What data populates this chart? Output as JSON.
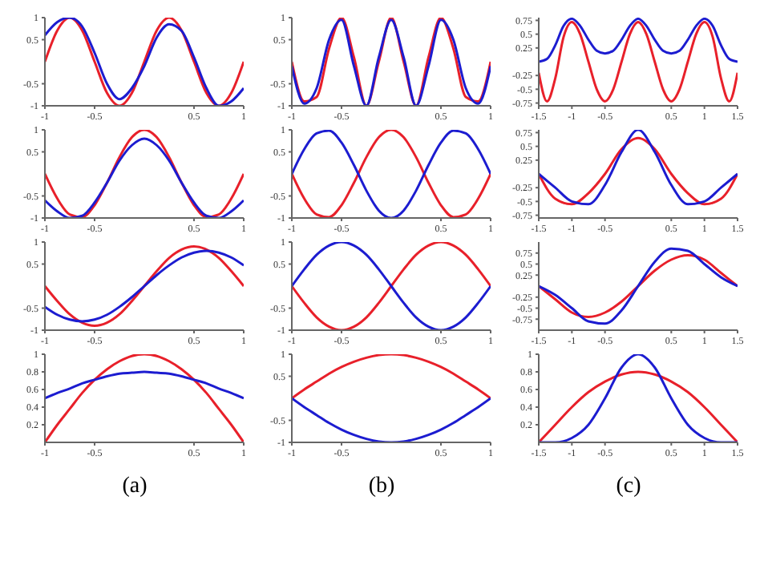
{
  "chart_data": [
    {
      "type": "line",
      "x": [
        -1,
        -0.875,
        -0.75,
        -0.625,
        -0.5,
        -0.375,
        -0.25,
        -0.125,
        0,
        0.125,
        0.25,
        0.375,
        0.5,
        0.625,
        0.75,
        0.875,
        1
      ],
      "xlim": [
        -1,
        1
      ],
      "xticks": [
        -1,
        -0.5,
        0.5,
        1
      ],
      "ylim": [
        -1,
        1
      ],
      "yticks": [
        -1,
        -0.5,
        0.5,
        1
      ],
      "series": [
        {
          "color": "#e8202a",
          "values": [
            0,
            0.71,
            1,
            0.71,
            0,
            -0.71,
            -1,
            -0.71,
            0,
            0.71,
            1,
            0.71,
            0,
            -0.71,
            -1,
            -0.71,
            0
          ]
        },
        {
          "color": "#1c1cd0",
          "values": [
            0.6,
            0.9,
            1,
            0.8,
            0.2,
            -0.5,
            -0.85,
            -0.6,
            -0.1,
            0.55,
            0.85,
            0.7,
            0.1,
            -0.6,
            -1,
            -0.9,
            -0.6
          ]
        }
      ]
    },
    {
      "type": "line",
      "x": [
        -1,
        -0.875,
        -0.75,
        -0.625,
        -0.5,
        -0.375,
        -0.25,
        -0.125,
        0,
        0.125,
        0.25,
        0.375,
        0.5,
        0.625,
        0.75,
        0.875,
        1
      ],
      "xlim": [
        -1,
        1
      ],
      "xticks": [
        -1,
        -0.5,
        0.5,
        1
      ],
      "ylim": [
        -1,
        1
      ],
      "yticks": [
        -1,
        -0.5,
        0.5,
        1
      ],
      "series": [
        {
          "color": "#e8202a",
          "values": [
            0,
            -0.9,
            -0.8,
            0.3,
            1,
            0.1,
            -1,
            0,
            1,
            0,
            -1,
            0.1,
            1,
            0.3,
            -0.8,
            -0.9,
            0
          ]
        },
        {
          "color": "#1c1cd0",
          "values": [
            -0.1,
            -0.95,
            -0.6,
            0.5,
            0.95,
            -0.1,
            -1,
            0.1,
            0.95,
            0.1,
            -1,
            -0.1,
            0.95,
            0.5,
            -0.6,
            -0.95,
            -0.1
          ]
        }
      ]
    },
    {
      "type": "line",
      "x": [
        -1.5,
        -1.375,
        -1.25,
        -1.125,
        -1,
        -0.875,
        -0.75,
        -0.625,
        -0.5,
        -0.375,
        -0.25,
        -0.125,
        0,
        0.125,
        0.25,
        0.375,
        0.5,
        0.625,
        0.75,
        0.875,
        1,
        1.125,
        1.25,
        1.375,
        1.5
      ],
      "xlim": [
        -1.5,
        1.5
      ],
      "xticks": [
        -1.5,
        -1,
        -0.5,
        0.5,
        1,
        1.5
      ],
      "ylim": [
        -0.8,
        0.8
      ],
      "yticks": [
        -0.75,
        -0.5,
        -0.25,
        0.25,
        0.5,
        0.75
      ],
      "series": [
        {
          "color": "#e8202a",
          "values": [
            -0.2,
            -0.72,
            -0.3,
            0.45,
            0.72,
            0.5,
            0,
            -0.5,
            -0.72,
            -0.5,
            0,
            0.5,
            0.72,
            0.5,
            0,
            -0.5,
            -0.72,
            -0.5,
            0,
            0.5,
            0.72,
            0.45,
            -0.3,
            -0.72,
            -0.2
          ]
        },
        {
          "color": "#1c1cd0",
          "values": [
            0,
            0.05,
            0.3,
            0.65,
            0.78,
            0.65,
            0.4,
            0.2,
            0.15,
            0.2,
            0.4,
            0.65,
            0.78,
            0.65,
            0.4,
            0.2,
            0.15,
            0.2,
            0.4,
            0.65,
            0.78,
            0.65,
            0.3,
            0.05,
            0
          ]
        }
      ]
    },
    {
      "type": "line",
      "x": [
        -1,
        -0.875,
        -0.75,
        -0.625,
        -0.5,
        -0.375,
        -0.25,
        -0.125,
        0,
        0.125,
        0.25,
        0.375,
        0.5,
        0.625,
        0.75,
        0.875,
        1
      ],
      "xlim": [
        -1,
        1
      ],
      "xticks": [
        -1,
        -0.5,
        0.5,
        1
      ],
      "ylim": [
        -1,
        1
      ],
      "yticks": [
        -1,
        -0.5,
        0.5,
        1
      ],
      "series": [
        {
          "color": "#e8202a",
          "values": [
            0,
            -0.56,
            -0.92,
            -0.98,
            -0.71,
            -0.2,
            0.38,
            0.83,
            1,
            0.83,
            0.38,
            -0.2,
            -0.71,
            -0.98,
            -0.92,
            -0.56,
            0
          ]
        },
        {
          "color": "#1c1cd0",
          "values": [
            -0.6,
            -0.85,
            -1,
            -0.95,
            -0.65,
            -0.2,
            0.3,
            0.65,
            0.8,
            0.65,
            0.3,
            -0.2,
            -0.65,
            -0.95,
            -1,
            -0.85,
            -0.6
          ]
        }
      ]
    },
    {
      "type": "line",
      "x": [
        -1,
        -0.875,
        -0.75,
        -0.625,
        -0.5,
        -0.375,
        -0.25,
        -0.125,
        0,
        0.125,
        0.25,
        0.375,
        0.5,
        0.625,
        0.75,
        0.875,
        1
      ],
      "xlim": [
        -1,
        1
      ],
      "xticks": [
        -1,
        -0.5,
        0.5,
        1
      ],
      "ylim": [
        -1,
        1
      ],
      "yticks": [
        -1,
        -0.5,
        0.5,
        1
      ],
      "series": [
        {
          "color": "#e8202a",
          "values": [
            0,
            -0.56,
            -0.92,
            -0.98,
            -0.71,
            -0.2,
            0.38,
            0.83,
            1,
            0.83,
            0.38,
            -0.2,
            -0.71,
            -0.98,
            -0.92,
            -0.56,
            0
          ]
        },
        {
          "color": "#1c1cd0",
          "values": [
            0,
            0.56,
            0.92,
            0.98,
            0.71,
            0.2,
            -0.38,
            -0.83,
            -1,
            -0.83,
            -0.38,
            0.2,
            0.71,
            0.98,
            0.92,
            0.56,
            0
          ]
        }
      ]
    },
    {
      "type": "line",
      "x": [
        -1.5,
        -1.25,
        -1,
        -0.75,
        -0.5,
        -0.25,
        0,
        0.25,
        0.5,
        0.75,
        1,
        1.25,
        1.5
      ],
      "xlim": [
        -1.5,
        1.5
      ],
      "xticks": [
        -1.5,
        -1,
        -0.5,
        0.5,
        1,
        1.5
      ],
      "ylim": [
        -0.8,
        0.8
      ],
      "yticks": [
        -0.75,
        -0.5,
        -0.25,
        0.25,
        0.5,
        0.75
      ],
      "series": [
        {
          "color": "#e8202a",
          "values": [
            0,
            -0.45,
            -0.55,
            -0.35,
            0,
            0.45,
            0.65,
            0.45,
            0,
            -0.35,
            -0.55,
            -0.45,
            0
          ]
        },
        {
          "color": "#1c1cd0",
          "values": [
            0,
            -0.25,
            -0.5,
            -0.55,
            -0.2,
            0.4,
            0.8,
            0.4,
            -0.2,
            -0.55,
            -0.5,
            -0.25,
            0
          ]
        }
      ]
    },
    {
      "type": "line",
      "x": [
        -1,
        -0.875,
        -0.75,
        -0.625,
        -0.5,
        -0.375,
        -0.25,
        -0.125,
        0,
        0.125,
        0.25,
        0.375,
        0.5,
        0.625,
        0.75,
        0.875,
        1
      ],
      "xlim": [
        -1,
        1
      ],
      "xticks": [
        -1,
        -0.5,
        0.5,
        1
      ],
      "ylim": [
        -1,
        1
      ],
      "yticks": [
        -1,
        -0.5,
        0.5,
        1
      ],
      "series": [
        {
          "color": "#e8202a",
          "values": [
            0,
            -0.34,
            -0.64,
            -0.83,
            -0.9,
            -0.83,
            -0.64,
            -0.34,
            0,
            0.34,
            0.64,
            0.83,
            0.9,
            0.83,
            0.64,
            0.34,
            0
          ]
        },
        {
          "color": "#1c1cd0",
          "values": [
            -0.47,
            -0.65,
            -0.76,
            -0.8,
            -0.76,
            -0.65,
            -0.47,
            -0.25,
            0,
            0.25,
            0.47,
            0.65,
            0.76,
            0.8,
            0.76,
            0.65,
            0.47
          ]
        }
      ]
    },
    {
      "type": "line",
      "x": [
        -1,
        -0.875,
        -0.75,
        -0.625,
        -0.5,
        -0.375,
        -0.25,
        -0.125,
        0,
        0.125,
        0.25,
        0.375,
        0.5,
        0.625,
        0.75,
        0.875,
        1
      ],
      "xlim": [
        -1,
        1
      ],
      "xticks": [
        -1,
        -0.5,
        0.5,
        1
      ],
      "ylim": [
        -1,
        1
      ],
      "yticks": [
        -1,
        -0.5,
        0.5,
        1
      ],
      "series": [
        {
          "color": "#e8202a",
          "values": [
            0,
            -0.38,
            -0.71,
            -0.92,
            -1,
            -0.92,
            -0.71,
            -0.38,
            0,
            0.38,
            0.71,
            0.92,
            1,
            0.92,
            0.71,
            0.38,
            0
          ]
        },
        {
          "color": "#1c1cd0",
          "values": [
            0,
            0.38,
            0.71,
            0.92,
            1,
            0.92,
            0.71,
            0.38,
            0,
            -0.38,
            -0.71,
            -0.92,
            -1,
            -0.92,
            -0.71,
            -0.38,
            0
          ]
        }
      ]
    },
    {
      "type": "line",
      "x": [
        -1.5,
        -1.25,
        -1,
        -0.75,
        -0.5,
        -0.25,
        0,
        0.25,
        0.5,
        0.75,
        1,
        1.25,
        1.5
      ],
      "xlim": [
        -1.5,
        1.5
      ],
      "xticks": [
        -1.5,
        -1,
        -0.5,
        0.5,
        1,
        1.5
      ],
      "ylim": [
        -1,
        1
      ],
      "yticks": [
        -0.75,
        -0.5,
        -0.25,
        0.25,
        0.5,
        0.75
      ],
      "series": [
        {
          "color": "#e8202a",
          "values": [
            0,
            -0.3,
            -0.6,
            -0.7,
            -0.6,
            -0.35,
            0,
            0.35,
            0.6,
            0.7,
            0.6,
            0.3,
            0
          ]
        },
        {
          "color": "#1c1cd0",
          "values": [
            0,
            -0.2,
            -0.5,
            -0.8,
            -0.85,
            -0.55,
            0,
            0.55,
            0.85,
            0.8,
            0.5,
            0.2,
            0
          ]
        }
      ]
    },
    {
      "type": "line",
      "x": [
        -1,
        -0.875,
        -0.75,
        -0.625,
        -0.5,
        -0.375,
        -0.25,
        -0.125,
        0,
        0.125,
        0.25,
        0.375,
        0.5,
        0.625,
        0.75,
        0.875,
        1
      ],
      "xlim": [
        -1,
        1
      ],
      "xticks": [
        -1,
        -0.5,
        0.5,
        1
      ],
      "ylim": [
        0,
        1
      ],
      "yticks": [
        0.2,
        0.4,
        0.6,
        0.8,
        1
      ],
      "annotations": [
        "(a)"
      ],
      "series": [
        {
          "color": "#e8202a",
          "values": [
            0,
            0.2,
            0.38,
            0.56,
            0.71,
            0.83,
            0.92,
            0.98,
            1,
            0.98,
            0.92,
            0.83,
            0.71,
            0.56,
            0.38,
            0.2,
            0
          ]
        },
        {
          "color": "#1c1cd0",
          "values": [
            0.5,
            0.56,
            0.61,
            0.67,
            0.71,
            0.75,
            0.78,
            0.79,
            0.8,
            0.79,
            0.78,
            0.75,
            0.71,
            0.67,
            0.61,
            0.56,
            0.5
          ]
        }
      ]
    },
    {
      "type": "line",
      "x": [
        -1,
        -0.875,
        -0.75,
        -0.625,
        -0.5,
        -0.375,
        -0.25,
        -0.125,
        0,
        0.125,
        0.25,
        0.375,
        0.5,
        0.625,
        0.75,
        0.875,
        1
      ],
      "xlim": [
        -1,
        1
      ],
      "xticks": [
        -1,
        -0.5,
        0.5,
        1
      ],
      "ylim": [
        -1,
        1
      ],
      "yticks": [
        -1,
        -0.5,
        0.5,
        1
      ],
      "annotations": [
        "(b)"
      ],
      "series": [
        {
          "color": "#e8202a",
          "values": [
            0,
            0.2,
            0.38,
            0.56,
            0.71,
            0.83,
            0.92,
            0.98,
            1,
            0.98,
            0.92,
            0.83,
            0.71,
            0.56,
            0.38,
            0.2,
            0
          ]
        },
        {
          "color": "#1c1cd0",
          "values": [
            0,
            -0.2,
            -0.38,
            -0.56,
            -0.71,
            -0.83,
            -0.92,
            -0.98,
            -1,
            -0.98,
            -0.92,
            -0.83,
            -0.71,
            -0.56,
            -0.38,
            -0.2,
            0
          ]
        }
      ]
    },
    {
      "type": "line",
      "x": [
        -1.5,
        -1.25,
        -1,
        -0.75,
        -0.5,
        -0.25,
        0,
        0.25,
        0.5,
        0.75,
        1,
        1.25,
        1.5
      ],
      "xlim": [
        -1.5,
        1.5
      ],
      "xticks": [
        -1.5,
        -1,
        -0.5,
        0.5,
        1,
        1.5
      ],
      "ylim": [
        0,
        1
      ],
      "yticks": [
        0.2,
        0.4,
        0.6,
        0.8,
        1
      ],
      "annotations": [
        "(c)"
      ],
      "series": [
        {
          "color": "#e8202a",
          "values": [
            0,
            0.2,
            0.4,
            0.57,
            0.69,
            0.77,
            0.8,
            0.77,
            0.69,
            0.57,
            0.4,
            0.2,
            0
          ]
        },
        {
          "color": "#1c1cd0",
          "values": [
            0,
            0,
            0.05,
            0.2,
            0.5,
            0.85,
            1,
            0.85,
            0.5,
            0.2,
            0.05,
            0,
            0
          ]
        }
      ]
    }
  ]
}
